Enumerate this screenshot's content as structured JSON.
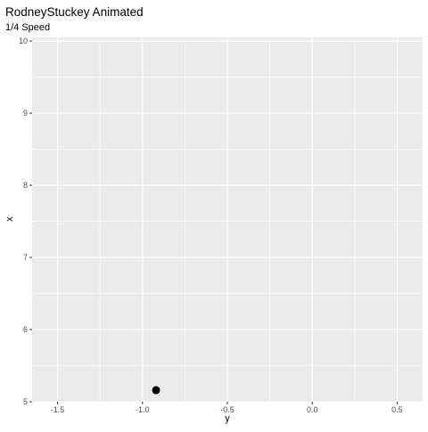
{
  "chart_data": {
    "type": "scatter",
    "title": "RodneyStuckey Animated",
    "subtitle": "1/4 Speed",
    "xlabel": "y",
    "ylabel": "x",
    "xlim": [
      -1.65,
      0.65
    ],
    "ylim": [
      5.0,
      10.05
    ],
    "x_ticks": [
      -1.5,
      -1.0,
      -0.5,
      0.0,
      0.5
    ],
    "x_tick_labels": [
      "-1.5",
      "-1.0",
      "-0.5",
      "0.0",
      "0.5"
    ],
    "y_ticks": [
      5,
      6,
      7,
      8,
      9,
      10
    ],
    "y_tick_labels": [
      "5",
      "6",
      "7",
      "8",
      "9",
      "10"
    ],
    "grid": true,
    "points": [
      {
        "x": -0.92,
        "y": 5.16
      }
    ],
    "colors": {
      "panel_background": "#ebebeb",
      "grid_line": "#ffffff",
      "point": "#000000",
      "tick_label": "#4d4d4d",
      "tick_mark": "#333333"
    }
  }
}
